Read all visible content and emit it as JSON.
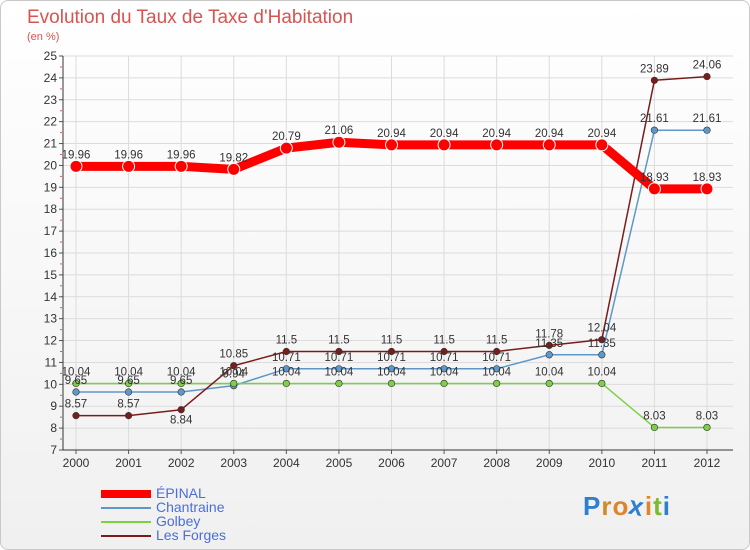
{
  "chart_title": "Evolution du Taux de Taxe d'Habitation",
  "chart_subtitle": "(en %)",
  "logo_text": "Proxiti",
  "logo_colors": [
    "#2f7fd0",
    "#d08a2a",
    "#e0842a",
    "#2f7fd0",
    "#e0842a",
    "#7cba2e",
    "#2f7fd0"
  ],
  "chart_data": {
    "type": "line",
    "title": "Evolution du Taux de Taxe d'Habitation",
    "ylabel": "(en %)",
    "xlabel": "",
    "ylim": [
      7,
      25
    ],
    "yticks": [
      "7",
      "8",
      "9",
      "10",
      "11",
      "12",
      "13",
      "14",
      "15",
      "16",
      "17",
      "18",
      "19",
      "20",
      "21",
      "22",
      "23",
      "24",
      "25"
    ],
    "x": [
      "2000",
      "2001",
      "2002",
      "2003",
      "2004",
      "2005",
      "2006",
      "2007",
      "2008",
      "2009",
      "2010",
      "2011",
      "2012"
    ],
    "series": [
      {
        "name": "ÉPINAL",
        "color": "#ff0000",
        "values": [
          19.96,
          19.96,
          19.96,
          19.82,
          20.79,
          21.06,
          20.94,
          20.94,
          20.94,
          20.94,
          20.94,
          18.93,
          18.93
        ],
        "labels": [
          "19.96",
          "19.96",
          "19.96",
          "19.82",
          "20.79",
          "21.06",
          "20.94",
          "20.94",
          "20.94",
          "20.94",
          "20.94",
          "18.93",
          "18.93"
        ],
        "label_pos": [
          "above",
          "above",
          "above",
          "above",
          "above",
          "above",
          "above",
          "above",
          "above",
          "above",
          "above",
          "above",
          "above"
        ]
      },
      {
        "name": "Chantraine",
        "color": "#5f98c8",
        "values": [
          9.65,
          9.65,
          9.65,
          9.94,
          10.71,
          10.71,
          10.71,
          10.71,
          10.71,
          11.35,
          11.35,
          21.61,
          21.61
        ],
        "labels": [
          "9.65",
          "9.65",
          "9.65",
          "9.94",
          "10.71",
          "10.71",
          "10.71",
          "10.71",
          "10.71",
          "11.35",
          "11.35",
          "21.61",
          "21.61"
        ],
        "label_pos": [
          "above",
          "above",
          "above",
          "above",
          "above",
          "above",
          "above",
          "above",
          "above",
          "above",
          "above",
          "above",
          "above"
        ]
      },
      {
        "name": "Golbey",
        "color": "#7cd142",
        "values": [
          10.04,
          10.04,
          10.04,
          10.04,
          10.04,
          10.04,
          10.04,
          10.04,
          10.04,
          10.04,
          10.04,
          8.03,
          8.03
        ],
        "labels": [
          "10.04",
          "10.04",
          "10.04",
          "10.04",
          "10.04",
          "10.04",
          "10.04",
          "10.04",
          "10.04",
          "10.04",
          "10.04",
          "8.03",
          "8.03"
        ],
        "label_pos": [
          "above",
          "above",
          "above",
          "above",
          "above",
          "above",
          "above",
          "above",
          "above",
          "above",
          "above",
          "above",
          "above"
        ]
      },
      {
        "name": "Les Forges",
        "color": "#7a1c1c",
        "values": [
          8.57,
          8.57,
          8.84,
          10.85,
          11.5,
          11.5,
          11.5,
          11.5,
          11.5,
          11.78,
          12.04,
          23.89,
          24.06
        ],
        "labels": [
          "8.57",
          "8.57",
          "8.84",
          "10.85",
          "11.5",
          "11.5",
          "11.5",
          "11.5",
          "11.5",
          "11.78",
          "12.04",
          "23.89",
          "24.06"
        ],
        "label_pos": [
          "above",
          "above",
          "below",
          "above",
          "above",
          "above",
          "above",
          "above",
          "above",
          "above",
          "above",
          "above",
          "above"
        ]
      }
    ]
  }
}
